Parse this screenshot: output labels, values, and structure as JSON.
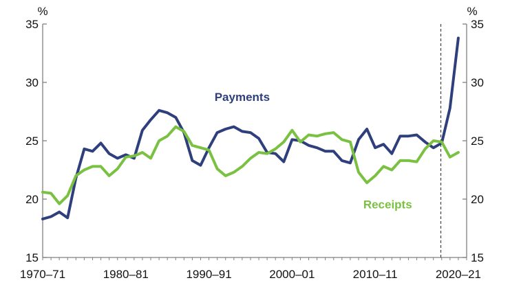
{
  "chart_data": {
    "type": "line",
    "title": "",
    "xlabel": "",
    "ylabel": "",
    "y_unit_left": "%",
    "y_unit_right": "%",
    "ylim": [
      15,
      35
    ],
    "yticks": [
      15,
      20,
      25,
      30,
      35
    ],
    "x_range": [
      1970,
      2021
    ],
    "x_tick_positions": [
      1970,
      1980,
      1990,
      2000,
      2010,
      2020
    ],
    "x_tick_labels": [
      "1970–71",
      "1980–81",
      "1990–91",
      "2000–01",
      "2010–11",
      "2020–21"
    ],
    "grid": false,
    "forecast_divider_x": 2017.9,
    "series": [
      {
        "name": "Payments",
        "color": "#2e3f7c",
        "label_at": [
          1994,
          28.4
        ],
        "x": [
          1970,
          1971,
          1972,
          1973,
          1974,
          1975,
          1976,
          1977,
          1978,
          1979,
          1980,
          1981,
          1982,
          1983,
          1984,
          1985,
          1986,
          1987,
          1988,
          1989,
          1990,
          1991,
          1992,
          1993,
          1994,
          1995,
          1996,
          1997,
          1998,
          1999,
          2000,
          2001,
          2002,
          2003,
          2004,
          2005,
          2006,
          2007,
          2008,
          2009,
          2010,
          2011,
          2012,
          2013,
          2014,
          2015,
          2016,
          2017,
          2018,
          2019,
          2020,
          2021
        ],
        "values": [
          18.3,
          18.5,
          18.9,
          18.4,
          21.8,
          24.3,
          24.1,
          24.8,
          23.9,
          23.5,
          23.8,
          23.5,
          25.9,
          26.8,
          27.6,
          27.4,
          27.0,
          25.7,
          23.3,
          22.9,
          24.4,
          25.7,
          26.0,
          26.2,
          25.8,
          25.7,
          25.2,
          24.0,
          23.9,
          23.2,
          25.1,
          25.0,
          24.6,
          24.4,
          24.1,
          24.1,
          23.3,
          23.1,
          25.1,
          26.0,
          24.4,
          24.7,
          23.9,
          25.4,
          25.4,
          25.5,
          24.9,
          24.4,
          24.8,
          27.8,
          33.8,
          null
        ]
      },
      {
        "name": "Receipts",
        "color": "#7ac142",
        "label_at": [
          2011.5,
          19.2
        ],
        "x": [
          1970,
          1971,
          1972,
          1973,
          1974,
          1975,
          1976,
          1977,
          1978,
          1979,
          1980,
          1981,
          1982,
          1983,
          1984,
          1985,
          1986,
          1987,
          1988,
          1989,
          1990,
          1991,
          1992,
          1993,
          1994,
          1995,
          1996,
          1997,
          1998,
          1999,
          2000,
          2001,
          2002,
          2003,
          2004,
          2005,
          2006,
          2007,
          2008,
          2009,
          2010,
          2011,
          2012,
          2013,
          2014,
          2015,
          2016,
          2017,
          2018,
          2019,
          2020,
          2021
        ],
        "values": [
          20.6,
          20.5,
          19.6,
          20.3,
          22.0,
          22.5,
          22.8,
          22.8,
          22.0,
          22.6,
          23.6,
          23.7,
          24.0,
          23.5,
          25.0,
          25.4,
          26.2,
          25.8,
          24.6,
          24.4,
          24.2,
          22.6,
          22.0,
          22.3,
          22.8,
          23.5,
          24.0,
          23.9,
          24.3,
          24.9,
          25.9,
          24.9,
          25.5,
          25.4,
          25.6,
          25.7,
          25.1,
          24.9,
          22.3,
          21.4,
          22.0,
          22.8,
          22.5,
          23.3,
          23.3,
          23.2,
          24.3,
          25.0,
          24.9,
          23.6,
          24.0,
          null
        ]
      }
    ]
  }
}
